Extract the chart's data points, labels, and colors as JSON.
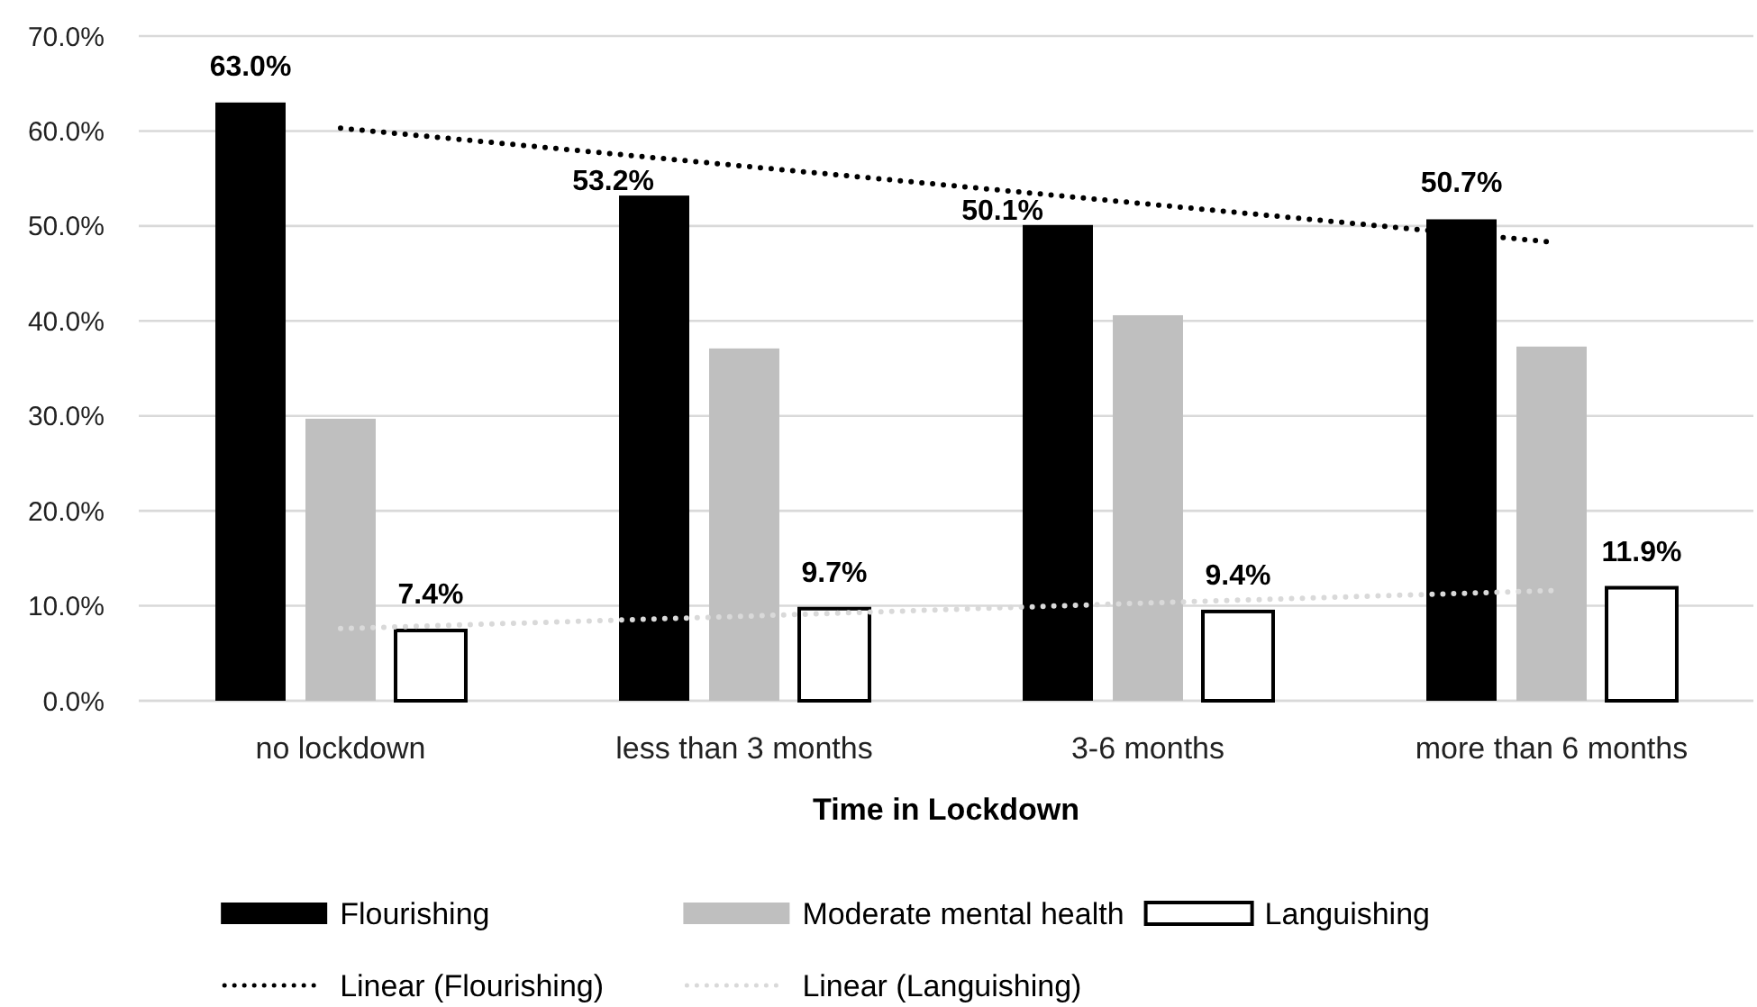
{
  "chart_data": {
    "type": "bar",
    "categories": [
      "no lockdown",
      "less than 3 months",
      "3-6 months",
      "more than 6 months"
    ],
    "xlabel": "Time in Lockdown",
    "ylim": [
      0,
      70
    ],
    "yticks": [
      {
        "value": 0,
        "label": "0.0%"
      },
      {
        "value": 10,
        "label": "10.0%"
      },
      {
        "value": 20,
        "label": "20.0%"
      },
      {
        "value": 30,
        "label": "30.0%"
      },
      {
        "value": 40,
        "label": "40.0%"
      },
      {
        "value": 50,
        "label": "50.0%"
      },
      {
        "value": 60,
        "label": "60.0%"
      },
      {
        "value": 70,
        "label": "70.0%"
      }
    ],
    "grid": "y",
    "legend": "bottom",
    "line_style": "dotted",
    "series": [
      {
        "name": "Flourishing",
        "color": "#000000",
        "values": [
          63.0,
          53.2,
          50.1,
          50.7
        ],
        "value_labels": [
          "63.0%",
          "53.2%",
          "50.1%",
          "50.7%"
        ]
      },
      {
        "name": "Moderate mental health",
        "color": "#bfbfbf",
        "values": [
          29.7,
          37.1,
          40.6,
          37.3
        ]
      },
      {
        "name": "Languishing",
        "color": "#ffffff",
        "values": [
          7.4,
          9.7,
          9.4,
          11.9
        ],
        "value_labels": [
          "7.4%",
          "9.7%",
          "9.4%",
          "11.9%"
        ]
      },
      {
        "name": "Linear (Flourishing)",
        "type": "line",
        "color": "#000000",
        "values": [
          60.3,
          56.3,
          52.3,
          48.3
        ]
      },
      {
        "name": "Linear (Languishing)",
        "type": "line",
        "color": "#d9d9d9",
        "values": [
          7.6,
          8.9,
          10.3,
          11.6
        ]
      }
    ]
  }
}
